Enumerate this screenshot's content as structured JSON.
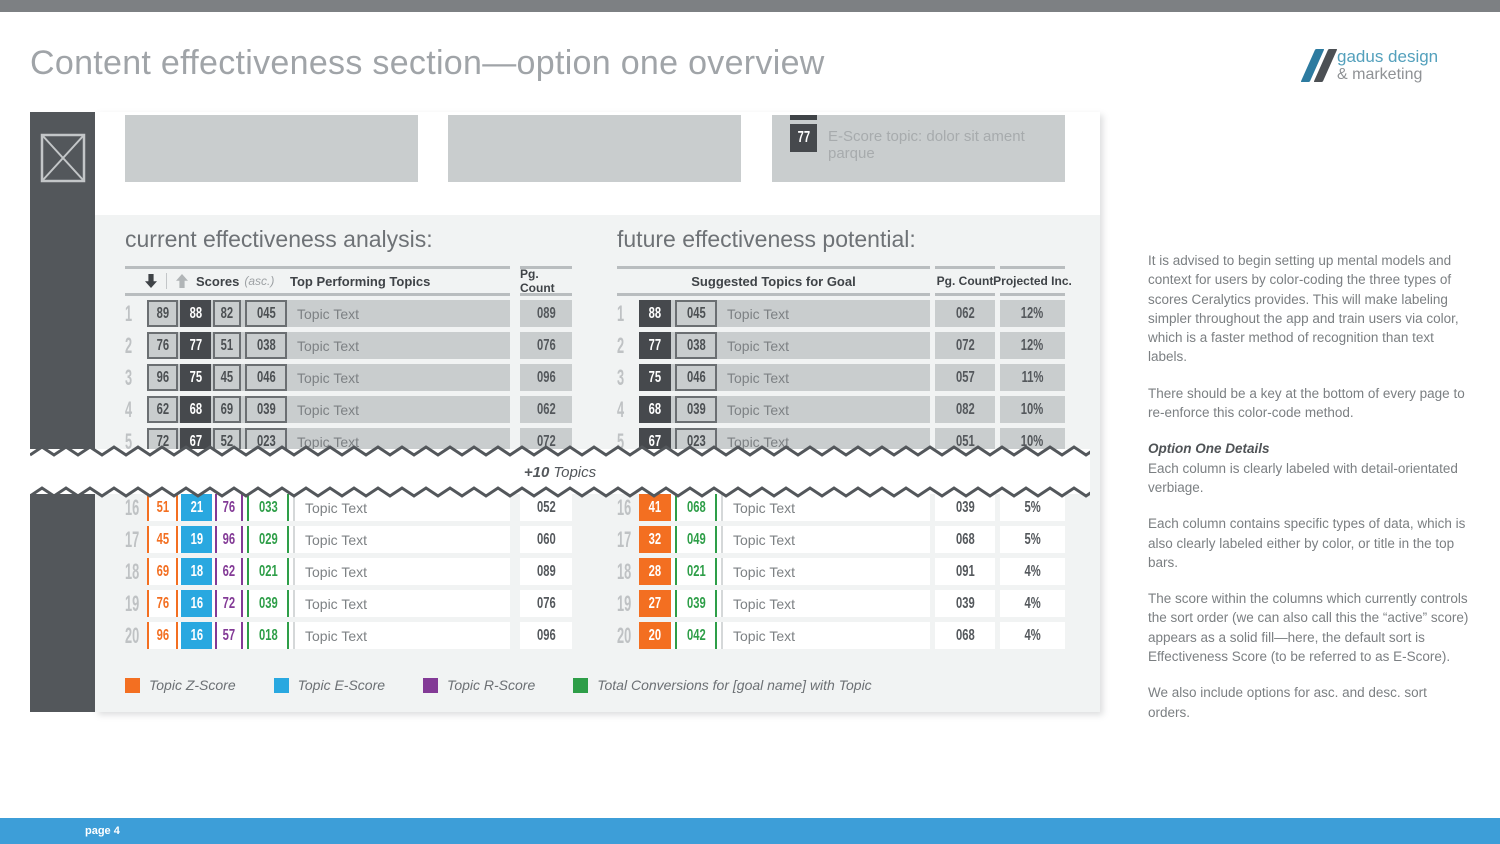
{
  "header": {
    "title": "Content effectiveness section—option one overview",
    "logo_line1": "gadus design",
    "logo_line2": "& marketing"
  },
  "footer": {
    "label": "page 4"
  },
  "hero": {
    "escore_badge_value": "77",
    "escore_badge_label": "E-Score topic: dolor sit ament parque"
  },
  "divider": {
    "label_strong": "+10",
    "label_rest": "Topics"
  },
  "tables": {
    "current": {
      "title": "current effectiveness analysis:",
      "columns": {
        "scores_label": "Scores",
        "sort_label": "(asc.)",
        "topics_label": "Top Performing Topics",
        "pg_label": "Pg. Count"
      },
      "top_rows": [
        {
          "rank": "1",
          "z": "89",
          "e": "88",
          "r": "82",
          "conv": "045",
          "topic": "Topic Text",
          "pg": "089"
        },
        {
          "rank": "2",
          "z": "76",
          "e": "77",
          "r": "51",
          "conv": "038",
          "topic": "Topic Text",
          "pg": "076"
        },
        {
          "rank": "3",
          "z": "96",
          "e": "75",
          "r": "45",
          "conv": "046",
          "topic": "Topic Text",
          "pg": "096"
        },
        {
          "rank": "4",
          "z": "62",
          "e": "68",
          "r": "69",
          "conv": "039",
          "topic": "Topic Text",
          "pg": "062"
        },
        {
          "rank": "5",
          "z": "72",
          "e": "67",
          "r": "52",
          "conv": "023",
          "topic": "Topic Text",
          "pg": "072"
        }
      ],
      "bottom_rows": [
        {
          "rank": "16",
          "z": "51",
          "e": "21",
          "r": "76",
          "conv": "033",
          "topic": "Topic Text",
          "pg": "052"
        },
        {
          "rank": "17",
          "z": "45",
          "e": "19",
          "r": "96",
          "conv": "029",
          "topic": "Topic Text",
          "pg": "060"
        },
        {
          "rank": "18",
          "z": "69",
          "e": "18",
          "r": "62",
          "conv": "021",
          "topic": "Topic Text",
          "pg": "089"
        },
        {
          "rank": "19",
          "z": "76",
          "e": "16",
          "r": "72",
          "conv": "039",
          "topic": "Topic Text",
          "pg": "076"
        },
        {
          "rank": "20",
          "z": "96",
          "e": "16",
          "r": "57",
          "conv": "018",
          "topic": "Topic Text",
          "pg": "096"
        }
      ]
    },
    "future": {
      "title": "future effectiveness potential:",
      "columns": {
        "topics_label": "Suggested Topics for Goal",
        "pg_label": "Pg. Count",
        "inc_label": "Projected Inc."
      },
      "top_rows": [
        {
          "rank": "1",
          "e": "88",
          "conv": "045",
          "topic": "Topic Text",
          "pg": "062",
          "inc": "12%"
        },
        {
          "rank": "2",
          "e": "77",
          "conv": "038",
          "topic": "Topic Text",
          "pg": "072",
          "inc": "12%"
        },
        {
          "rank": "3",
          "e": "75",
          "conv": "046",
          "topic": "Topic Text",
          "pg": "057",
          "inc": "11%"
        },
        {
          "rank": "4",
          "e": "68",
          "conv": "039",
          "topic": "Topic Text",
          "pg": "082",
          "inc": "10%"
        },
        {
          "rank": "5",
          "e": "67",
          "conv": "023",
          "topic": "Topic Text",
          "pg": "051",
          "inc": "10%"
        }
      ],
      "bottom_rows": [
        {
          "rank": "16",
          "e": "41",
          "conv": "068",
          "topic": "Topic Text",
          "pg": "039",
          "inc": "5%"
        },
        {
          "rank": "17",
          "e": "32",
          "conv": "049",
          "topic": "Topic Text",
          "pg": "068",
          "inc": "5%"
        },
        {
          "rank": "18",
          "e": "28",
          "conv": "021",
          "topic": "Topic Text",
          "pg": "091",
          "inc": "4%"
        },
        {
          "rank": "19",
          "e": "27",
          "conv": "039",
          "topic": "Topic Text",
          "pg": "039",
          "inc": "4%"
        },
        {
          "rank": "20",
          "e": "20",
          "conv": "042",
          "topic": "Topic Text",
          "pg": "068",
          "inc": "4%"
        }
      ]
    }
  },
  "legend": [
    {
      "name": "z-score",
      "color": "#f36f21",
      "label": "Topic Z-Score"
    },
    {
      "name": "e-score",
      "color": "#29a8e0",
      "label": "Topic E-Score"
    },
    {
      "name": "r-score",
      "color": "#833a96",
      "label": "Topic R-Score"
    },
    {
      "name": "conversions",
      "color": "#2e9e48",
      "label": "Total Conversions for [goal name] with Topic"
    }
  ],
  "notes": [
    {
      "text": "It is advised to begin setting up mental models and context for users by color-coding the three types of scores Ceralytics provides. This will make labeling simpler throughout the app and train users via color, which is a faster method of recognition than text labels."
    },
    {
      "text": "There should be a key at the bottom of every page to re-enforce this color-code method."
    },
    {
      "heading": "Option One Details",
      "text": "Each column is clearly labeled with detail-orientated verbiage."
    },
    {
      "text": "Each column contains specific types of data, which is also clearly labeled either by color, or title in the top bars."
    },
    {
      "text": "The score within the columns which currently controls the sort order (we can also call this the “active” score) appears as a solid fill—here, the default sort is Effectiveness Score (to be referred to as E-Score)."
    },
    {
      "text": "We also include options for asc. and desc. sort orders."
    }
  ],
  "colors": {
    "orange": "#f36f21",
    "blue": "#29a8e0",
    "purple": "#833a96",
    "green": "#2e9e48",
    "dark_fill": "#46494d",
    "row_gray": "#c9cdce",
    "footer_blue": "#3d9ed8",
    "rail_gray": "#53575b"
  }
}
